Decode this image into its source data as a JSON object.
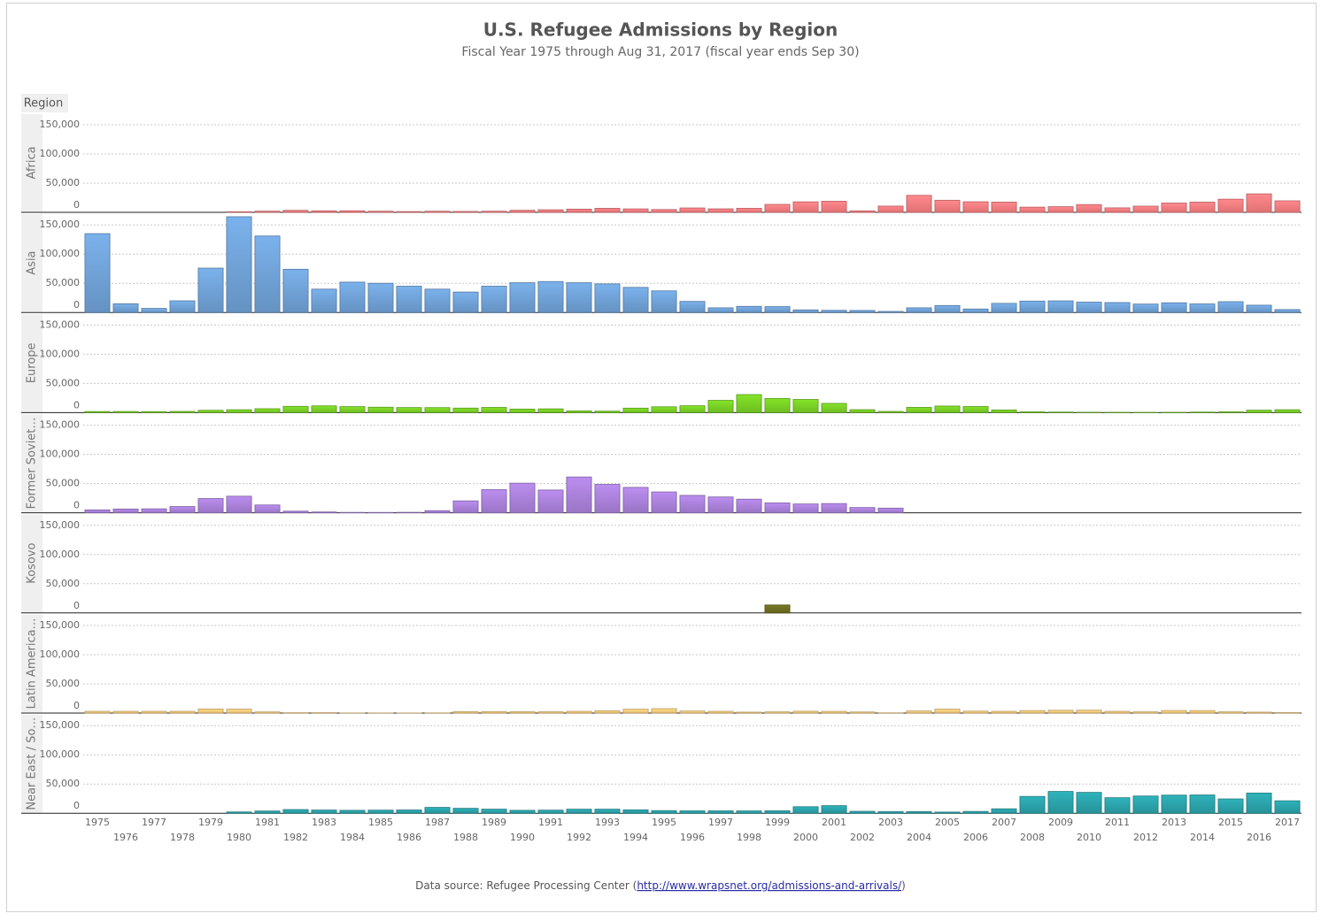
{
  "chart_data": {
    "type": "bar",
    "title": "U.S. Refugee Admissions by Region",
    "subtitle": "Fiscal Year 1975 through Aug 31, 2017 (fiscal year ends Sep 30)",
    "facet_label": "Region",
    "categories": [
      "1975",
      "1976",
      "1977",
      "1978",
      "1979",
      "1980",
      "1981",
      "1982",
      "1983",
      "1984",
      "1985",
      "1986",
      "1987",
      "1988",
      "1989",
      "1990",
      "1991",
      "1992",
      "1993",
      "1994",
      "1995",
      "1996",
      "1997",
      "1998",
      "1999",
      "2000",
      "2001",
      "2002",
      "2003",
      "2004",
      "2005",
      "2006",
      "2007",
      "2008",
      "2009",
      "2010",
      "2011",
      "2012",
      "2013",
      "2014",
      "2015",
      "2016",
      "2017"
    ],
    "ylim": [
      0,
      170000
    ],
    "yticks": [
      0,
      {
        "value": 50000,
        "label": "50,000"
      },
      {
        "value": 100000,
        "label": "100,000"
      },
      {
        "value": 150000,
        "label": "150,000"
      }
    ],
    "grid": true,
    "series": [
      {
        "name": "Africa",
        "color": "#f47b7e",
        "values": [
          0,
          0,
          0,
          0,
          0,
          1000,
          2000,
          3400,
          2600,
          2700,
          1900,
          1300,
          1900,
          1500,
          1900,
          3500,
          4400,
          5500,
          6900,
          5900,
          4800,
          7500,
          6000,
          6900,
          13600,
          18000,
          19000,
          2500,
          10700,
          29100,
          20700,
          18100,
          17500,
          8900,
          9700,
          13300,
          7700,
          10600,
          15900,
          17500,
          22500,
          31600,
          19700
        ]
      },
      {
        "name": "Asia",
        "color": "#6e9fd3",
        "values": [
          135000,
          15000,
          7000,
          20000,
          76000,
          164000,
          131000,
          74000,
          40000,
          52000,
          50000,
          45000,
          40000,
          35000,
          45000,
          51000,
          53000,
          51000,
          49000,
          43000,
          37000,
          19000,
          8000,
          10500,
          10000,
          4500,
          3700,
          3500,
          1800,
          8000,
          12000,
          6000,
          15600,
          19500,
          19900,
          17700,
          17000,
          14400,
          16600,
          14700,
          18500,
          12500,
          5000
        ]
      },
      {
        "name": "Europe",
        "color": "#77cc25",
        "values": [
          1900,
          2000,
          1800,
          2100,
          4000,
          5000,
          6700,
          10800,
          11600,
          10300,
          9300,
          8700,
          8600,
          7800,
          8900,
          6100,
          6500,
          3000,
          2600,
          7700,
          10000,
          11800,
          21000,
          30900,
          24300,
          22600,
          15800,
          5100,
          2100,
          9000,
          11300,
          10500,
          4600,
          1400,
          1000,
          600,
          500,
          400,
          500,
          1000,
          1400,
          4200,
          5000
        ]
      },
      {
        "name": "Former Soviet…",
        "color": "#a77fd6",
        "values": [
          5000,
          6500,
          6800,
          10700,
          24400,
          28400,
          13400,
          2800,
          1400,
          700,
          600,
          800,
          3700,
          20400,
          39600,
          50700,
          39000,
          61300,
          48600,
          43500,
          35700,
          29800,
          27100,
          23300,
          16900,
          15100,
          15800,
          9000,
          8000,
          null,
          null,
          null,
          null,
          null,
          null,
          null,
          null,
          null,
          null,
          null,
          null,
          null,
          null
        ]
      },
      {
        "name": "Kosovo",
        "color": "#6b6b21",
        "values": [
          null,
          null,
          null,
          null,
          null,
          null,
          null,
          null,
          null,
          null,
          null,
          null,
          null,
          null,
          null,
          null,
          null,
          null,
          null,
          null,
          null,
          null,
          null,
          null,
          13600,
          null,
          null,
          null,
          null,
          null,
          null,
          null,
          null,
          null,
          null,
          null,
          null,
          null,
          null,
          null,
          null,
          null,
          null
        ]
      },
      {
        "name": "Latin America…",
        "color": "#f9c97a",
        "values": [
          3000,
          3000,
          3000,
          3000,
          7000,
          6700,
          2000,
          600,
          700,
          200,
          100,
          100,
          300,
          2500,
          2600,
          2300,
          2200,
          3000,
          4000,
          6600,
          7600,
          3500,
          3000,
          1600,
          2100,
          3200,
          2900,
          1900,
          400,
          3600,
          6700,
          3300,
          3000,
          4300,
          4800,
          5000,
          3000,
          2100,
          4400,
          4300,
          2100,
          1600,
          800
        ]
      },
      {
        "name": "Near East / So…",
        "color": "#2aa0a7",
        "values": [
          null,
          null,
          null,
          null,
          null,
          2200,
          3800,
          6300,
          5500,
          5000,
          5300,
          5600,
          10000,
          8400,
          7000,
          5000,
          5300,
          6900,
          6900,
          5800,
          4500,
          4100,
          4100,
          4000,
          4200,
          11200,
          13000,
          3300,
          2900,
          2800,
          2000,
          3100,
          7600,
          28800,
          37300,
          35700,
          26600,
          29500,
          31000,
          31300,
          24500,
          34600,
          21300
        ]
      }
    ],
    "footer": {
      "prefix": "Data source: Refugee Processing Center (",
      "link": "http://www.wrapsnet.org/admissions-and-arrivals/",
      "suffix": ")"
    }
  }
}
